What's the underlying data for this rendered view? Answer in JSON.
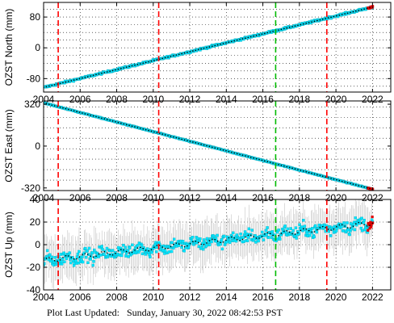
{
  "footer": {
    "label": "Plot Last Updated:",
    "timestamp": "Sunday, January 30, 2022 08:42:53 PST"
  },
  "colors": {
    "point_fill": "#00e5ff",
    "point_edge": "#1aa0b0",
    "trend": "#000000",
    "recent_points": "#e00000",
    "errorbar": "#b8b8b8",
    "red_lines": "#ff0000",
    "green_lines": "#00bb00"
  },
  "chart_data": [
    {
      "type": "scatter",
      "ylabel": "OZST North (mm)",
      "xlim": [
        2004,
        2023
      ],
      "ylim": [
        -115,
        118
      ],
      "x_ticks": [
        2004,
        2006,
        2008,
        2010,
        2012,
        2014,
        2016,
        2018,
        2020,
        2022
      ],
      "y_ticks": [
        -80,
        0,
        80
      ],
      "grid": true,
      "trend_start": [
        2004.0,
        -103
      ],
      "trend_end": [
        2022.0,
        106
      ],
      "scatter_half_width": 4,
      "vertical_lines": [
        {
          "x": 2004.8,
          "color": "red",
          "style": "dashed"
        },
        {
          "x": 2010.3,
          "color": "red",
          "style": "dashed"
        },
        {
          "x": 2016.7,
          "color": "green",
          "style": "dashed"
        },
        {
          "x": 2019.5,
          "color": "red",
          "style": "dashed"
        }
      ]
    },
    {
      "type": "scatter",
      "ylabel": "OZST East (mm)",
      "xlim": [
        2004,
        2023
      ],
      "ylim": [
        -340,
        345
      ],
      "x_ticks": [
        2004,
        2006,
        2008,
        2010,
        2012,
        2014,
        2016,
        2018,
        2020,
        2022
      ],
      "y_ticks": [
        -320,
        0,
        320
      ],
      "grid": true,
      "trend_start": [
        2004.0,
        330
      ],
      "trend_end": [
        2022.0,
        -330
      ],
      "scatter_half_width": 4,
      "vertical_lines": [
        {
          "x": 2004.8,
          "color": "red",
          "style": "dashed"
        },
        {
          "x": 2010.3,
          "color": "red",
          "style": "dashed"
        },
        {
          "x": 2016.7,
          "color": "green",
          "style": "dashed"
        },
        {
          "x": 2019.5,
          "color": "red",
          "style": "dashed"
        }
      ]
    },
    {
      "type": "scatter",
      "ylabel": "OZST Up (mm)",
      "xlim": [
        2004,
        2023
      ],
      "ylim": [
        -40,
        40
      ],
      "x_ticks": [
        2004,
        2006,
        2008,
        2010,
        2012,
        2014,
        2016,
        2018,
        2020,
        2022
      ],
      "y_ticks": [
        -40,
        -20,
        0,
        20,
        40
      ],
      "grid": true,
      "trend_start": [
        2004.0,
        -14
      ],
      "trend_end": [
        2022.0,
        19
      ],
      "scatter_half_width": 10,
      "errorbar_half_width": 20,
      "vertical_lines": [
        {
          "x": 2004.8,
          "color": "red",
          "style": "dashed"
        },
        {
          "x": 2010.3,
          "color": "red",
          "style": "dashed"
        },
        {
          "x": 2016.7,
          "color": "green",
          "style": "dashed"
        },
        {
          "x": 2019.5,
          "color": "red",
          "style": "dashed"
        }
      ]
    }
  ]
}
